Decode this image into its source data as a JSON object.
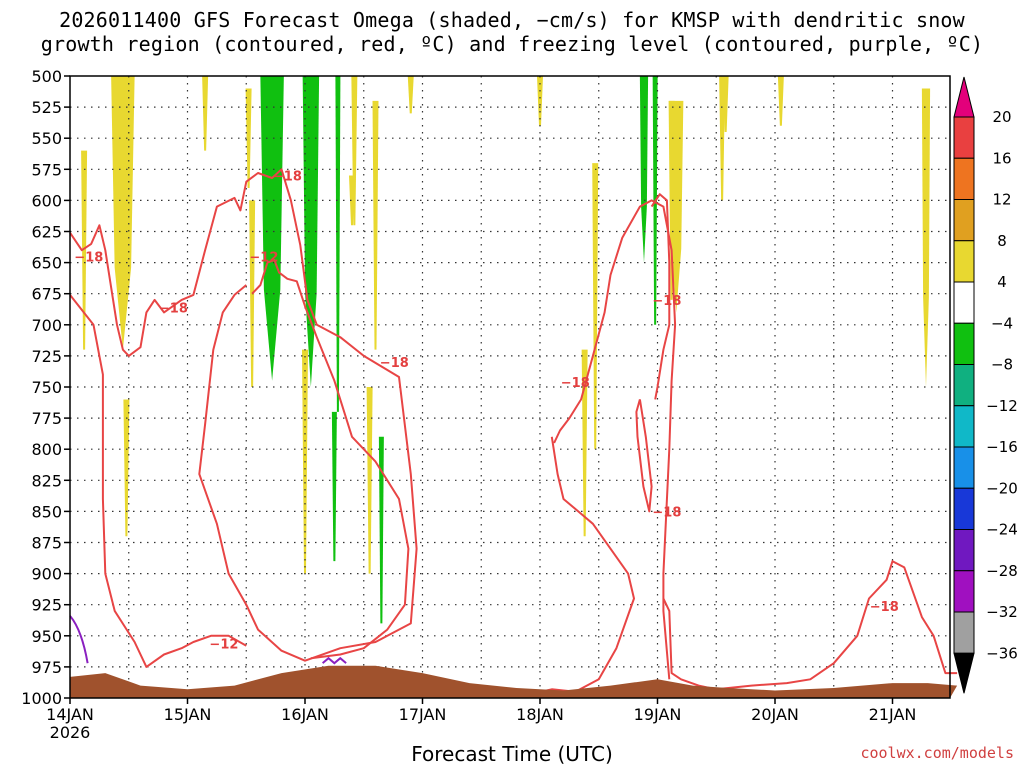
{
  "title_line1": "2026011400 GFS Forecast Omega (shaded, −cm/s) for KMSP with dendritic snow",
  "title_line2": "growth region (contoured, red, ºC) and freezing level (contoured, purple, ºC)",
  "watermark": "coolwx.com/models",
  "chart_data": {
    "type": "heatmap",
    "title": "2026011400 GFS Forecast Omega (shaded, −cm/s) for KMSP with dendritic snow growth region (contoured, red, ºC) and freezing level (contoured, purple, ºC)",
    "xlabel": "Forecast Time (UTC)",
    "ylabel": "",
    "x_ticks": [
      "14JAN",
      "15JAN",
      "16JAN",
      "17JAN",
      "18JAN",
      "19JAN",
      "20JAN",
      "21JAN"
    ],
    "x_tick_sublabel": "2026",
    "xlim_days": [
      0,
      7.55
    ],
    "y_ticks": [
      "500",
      "525",
      "550",
      "575",
      "600",
      "625",
      "650",
      "675",
      "700",
      "725",
      "750",
      "775",
      "800",
      "825",
      "850",
      "875",
      "900",
      "925",
      "950",
      "975",
      "1000"
    ],
    "ylim": [
      1000,
      500
    ],
    "grid": true,
    "colorbar": {
      "labels": [
        "20",
        "16",
        "12",
        "8",
        "4",
        "−4",
        "−8",
        "−12",
        "−16",
        "−20",
        "−24",
        "−28",
        "−32",
        "−36"
      ],
      "colors": [
        "#e3007b",
        "#e94040",
        "#ee7420",
        "#e0a020",
        "#e8d830",
        "#ffffff",
        "#10c010",
        "#10b080",
        "#10b8c8",
        "#1890e8",
        "#1838d8",
        "#7018c0",
        "#a010c0",
        "#a0a0a0",
        "#000000"
      ]
    },
    "contour_labels": [
      {
        "text": "−18",
        "day": 0.16,
        "hPa": 645
      },
      {
        "text": "−18",
        "day": 0.88,
        "hPa": 686
      },
      {
        "text": "−12",
        "day": 1.31,
        "hPa": 956
      },
      {
        "text": "−12",
        "day": 1.65,
        "hPa": 645
      },
      {
        "text": "−18",
        "day": 1.85,
        "hPa": 580
      },
      {
        "text": "−18",
        "day": 2.76,
        "hPa": 730
      },
      {
        "text": "−18",
        "day": 4.3,
        "hPa": 746
      },
      {
        "text": "−18",
        "day": 5.08,
        "hPa": 680
      },
      {
        "text": "−18",
        "day": 5.08,
        "hPa": 850
      },
      {
        "text": "−18",
        "day": 6.93,
        "hPa": 926
      }
    ],
    "omega_regions": [
      {
        "day_start": 0.35,
        "day_end": 0.55,
        "hPa_top": 500,
        "hPa_bottom": 720,
        "value": 6
      },
      {
        "day_start": 1.62,
        "day_end": 1.82,
        "hPa_top": 500,
        "hPa_bottom": 745,
        "value": -6
      },
      {
        "day_start": 1.98,
        "day_end": 2.12,
        "hPa_top": 500,
        "hPa_bottom": 750,
        "value": -6
      },
      {
        "day_start": 4.85,
        "day_end": 4.92,
        "hPa_top": 500,
        "hPa_bottom": 650,
        "value": -6
      },
      {
        "day_start": 5.1,
        "day_end": 5.22,
        "hPa_top": 520,
        "hPa_bottom": 690,
        "value": 6
      },
      {
        "day_start": 7.25,
        "day_end": 7.32,
        "hPa_top": 510,
        "hPa_bottom": 750,
        "value": 6
      }
    ],
    "freezing_level_label": ""
  }
}
